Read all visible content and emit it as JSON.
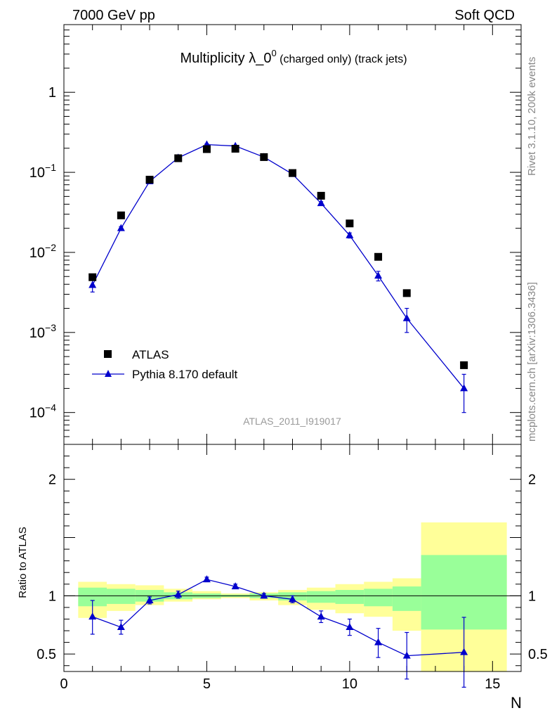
{
  "header": {
    "left": "7000 GeV pp",
    "right": "Soft QCD"
  },
  "side_labels": {
    "rivet": "Rivet 3.1.10,  200k events",
    "mcplots": "mcplots.cern.ch [arXiv:1306.3436]"
  },
  "chart_data": {
    "type": "scatter",
    "title_main": "Multiplicity λ_0",
    "title_sup": "0",
    "title_sub": " (charged only) (track jets)",
    "analysis_ref": "ATLAS_2011_I919017",
    "xlabel": "N",
    "ratio_ylabel": "Ratio to ATLAS",
    "xlim": [
      0,
      16
    ],
    "main": {
      "yscale": "log",
      "ylim": [
        4e-05,
        7
      ],
      "yticks": [
        {
          "v": 0.0001,
          "base": "10",
          "exp": "−4"
        },
        {
          "v": 0.001,
          "base": "10",
          "exp": "−3"
        },
        {
          "v": 0.01,
          "base": "10",
          "exp": "−2"
        },
        {
          "v": 0.1,
          "base": "10",
          "exp": "−1"
        },
        {
          "v": 1,
          "base": "1",
          "exp": ""
        }
      ]
    },
    "ratio": {
      "ylim": [
        0.35,
        2.3
      ],
      "yticks": [
        {
          "v": 0.5,
          "label": "0.5"
        },
        {
          "v": 1,
          "label": "1"
        },
        {
          "v": 2,
          "label": "2"
        }
      ],
      "bands": [
        {
          "x0": 0.5,
          "x1": 1.5,
          "g_lo": 0.91,
          "g_hi": 1.07,
          "y_lo": 0.81,
          "y_hi": 1.12
        },
        {
          "x0": 1.5,
          "x1": 2.5,
          "g_lo": 0.93,
          "g_hi": 1.06,
          "y_lo": 0.87,
          "y_hi": 1.1
        },
        {
          "x0": 2.5,
          "x1": 3.5,
          "g_lo": 0.95,
          "g_hi": 1.05,
          "y_lo": 0.92,
          "y_hi": 1.09
        },
        {
          "x0": 3.5,
          "x1": 4.5,
          "g_lo": 0.97,
          "g_hi": 1.03,
          "y_lo": 0.95,
          "y_hi": 1.06
        },
        {
          "x0": 4.5,
          "x1": 5.5,
          "g_lo": 0.98,
          "g_hi": 1.02,
          "y_lo": 0.97,
          "y_hi": 1.04
        },
        {
          "x0": 5.5,
          "x1": 6.5,
          "g_lo": 0.99,
          "g_hi": 1.01,
          "y_lo": 0.98,
          "y_hi": 1.02
        },
        {
          "x0": 6.5,
          "x1": 7.5,
          "g_lo": 0.98,
          "g_hi": 1.02,
          "y_lo": 0.96,
          "y_hi": 1.03
        },
        {
          "x0": 7.5,
          "x1": 8.5,
          "g_lo": 0.96,
          "g_hi": 1.03,
          "y_lo": 0.92,
          "y_hi": 1.05
        },
        {
          "x0": 8.5,
          "x1": 9.5,
          "g_lo": 0.94,
          "g_hi": 1.04,
          "y_lo": 0.88,
          "y_hi": 1.07
        },
        {
          "x0": 9.5,
          "x1": 10.5,
          "g_lo": 0.93,
          "g_hi": 1.05,
          "y_lo": 0.85,
          "y_hi": 1.1
        },
        {
          "x0": 10.5,
          "x1": 11.5,
          "g_lo": 0.91,
          "g_hi": 1.06,
          "y_lo": 0.82,
          "y_hi": 1.12
        },
        {
          "x0": 11.5,
          "x1": 12.5,
          "g_lo": 0.87,
          "g_hi": 1.08,
          "y_lo": 0.7,
          "y_hi": 1.15
        },
        {
          "x0": 12.5,
          "x1": 15.5,
          "g_lo": 0.71,
          "g_hi": 1.35,
          "y_lo": 0.35,
          "y_hi": 1.63
        }
      ]
    },
    "series": [
      {
        "name": "ATLAS",
        "color": "#000000",
        "marker": "square",
        "x": [
          1,
          2,
          3,
          4,
          5,
          6,
          7,
          8,
          9,
          10,
          11,
          12,
          14
        ],
        "y": [
          0.0049,
          0.029,
          0.081,
          0.15,
          0.195,
          0.197,
          0.155,
          0.098,
          0.051,
          0.023,
          0.0088,
          0.0031,
          0.00039
        ]
      },
      {
        "name": "Pythia 8.170 default",
        "color": "#0000cc",
        "marker": "triangle",
        "x": [
          1,
          2,
          3,
          4,
          5,
          6,
          7,
          8,
          9,
          10,
          11,
          12,
          14
        ],
        "y": [
          0.0039,
          0.02,
          0.077,
          0.152,
          0.222,
          0.213,
          0.155,
          0.095,
          0.041,
          0.0163,
          0.0051,
          0.0015,
          0.0002
        ],
        "y_err_lo": [
          0.0007,
          0.001,
          0.003,
          0.004,
          0.005,
          0.005,
          0.004,
          0.003,
          0.002,
          0.0012,
          0.0007,
          0.0005,
          0.0001
        ],
        "y_err_hi": [
          0.0007,
          0.001,
          0.003,
          0.004,
          0.005,
          0.005,
          0.004,
          0.003,
          0.002,
          0.0012,
          0.0007,
          0.0005,
          0.0001
        ],
        "ratio": [
          0.82,
          0.73,
          0.96,
          1.01,
          1.14,
          1.08,
          1.0,
          0.97,
          0.82,
          0.73,
          0.6,
          0.485,
          0.515
        ],
        "ratio_err_lo": [
          0.15,
          0.06,
          0.03,
          0.03,
          0.02,
          0.02,
          0.02,
          0.03,
          0.05,
          0.07,
          0.13,
          0.2,
          0.3
        ],
        "ratio_err_hi": [
          0.14,
          0.06,
          0.03,
          0.03,
          0.02,
          0.02,
          0.02,
          0.03,
          0.05,
          0.07,
          0.12,
          0.2,
          0.3
        ]
      }
    ]
  }
}
